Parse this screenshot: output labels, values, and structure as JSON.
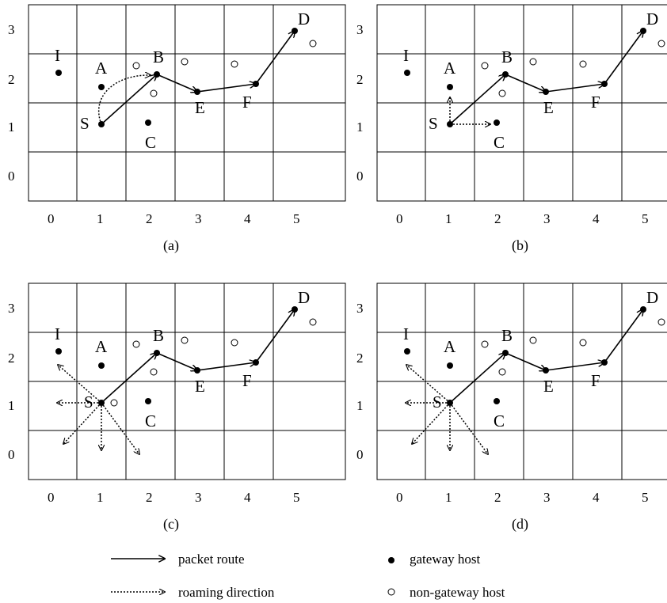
{
  "panels": [
    {
      "caption": "(a)",
      "x_ticks": [
        "0",
        "1",
        "2",
        "3",
        "4",
        "5"
      ],
      "y_ticks": [
        "3",
        "2",
        "1",
        "0"
      ],
      "nodes": {
        "I": {
          "label": "I"
        },
        "A": {
          "label": "A"
        },
        "B": {
          "label": "B"
        },
        "S": {
          "label": "S"
        },
        "C": {
          "label": "C"
        },
        "E": {
          "label": "E"
        },
        "F": {
          "label": "F"
        },
        "D": {
          "label": "D"
        }
      },
      "roaming": "S->B curved (A)"
    },
    {
      "caption": "(b)",
      "x_ticks": [
        "0",
        "1",
        "2",
        "3",
        "4",
        "5"
      ],
      "y_ticks": [
        "3",
        "2",
        "1",
        "0"
      ],
      "nodes": {
        "I": {
          "label": "I"
        },
        "A": {
          "label": "A"
        },
        "B": {
          "label": "B"
        },
        "S": {
          "label": "S"
        },
        "C": {
          "label": "C"
        },
        "E": {
          "label": "E"
        },
        "F": {
          "label": "F"
        },
        "D": {
          "label": "D"
        }
      },
      "roaming": "S up and right"
    },
    {
      "caption": "(c)",
      "x_ticks": [
        "0",
        "1",
        "2",
        "3",
        "4",
        "5"
      ],
      "y_ticks": [
        "3",
        "2",
        "1",
        "0"
      ],
      "nodes": {
        "I": {
          "label": "I"
        },
        "A": {
          "label": "A"
        },
        "B": {
          "label": "B"
        },
        "S": {
          "label": "S"
        },
        "C": {
          "label": "C"
        },
        "E": {
          "label": "E"
        },
        "F": {
          "label": "F"
        },
        "D": {
          "label": "D"
        }
      },
      "roaming": "S five directions"
    },
    {
      "caption": "(d)",
      "x_ticks": [
        "0",
        "1",
        "2",
        "3",
        "4",
        "5"
      ],
      "y_ticks": [
        "3",
        "2",
        "1",
        "0"
      ],
      "nodes": {
        "I": {
          "label": "I"
        },
        "A": {
          "label": "A"
        },
        "B": {
          "label": "B"
        },
        "S": {
          "label": "S"
        },
        "C": {
          "label": "C"
        },
        "E": {
          "label": "E"
        },
        "F": {
          "label": "F"
        },
        "D": {
          "label": "D"
        }
      },
      "roaming": "S five directions"
    }
  ],
  "legend": {
    "packet_route": "packet route",
    "roaming_direction": "roaming direction",
    "gateway_host": "gateway host",
    "non_gateway_host": "non-gateway host"
  },
  "colors": {
    "ink": "#000000",
    "grid": "#000000",
    "background": "#ffffff"
  }
}
